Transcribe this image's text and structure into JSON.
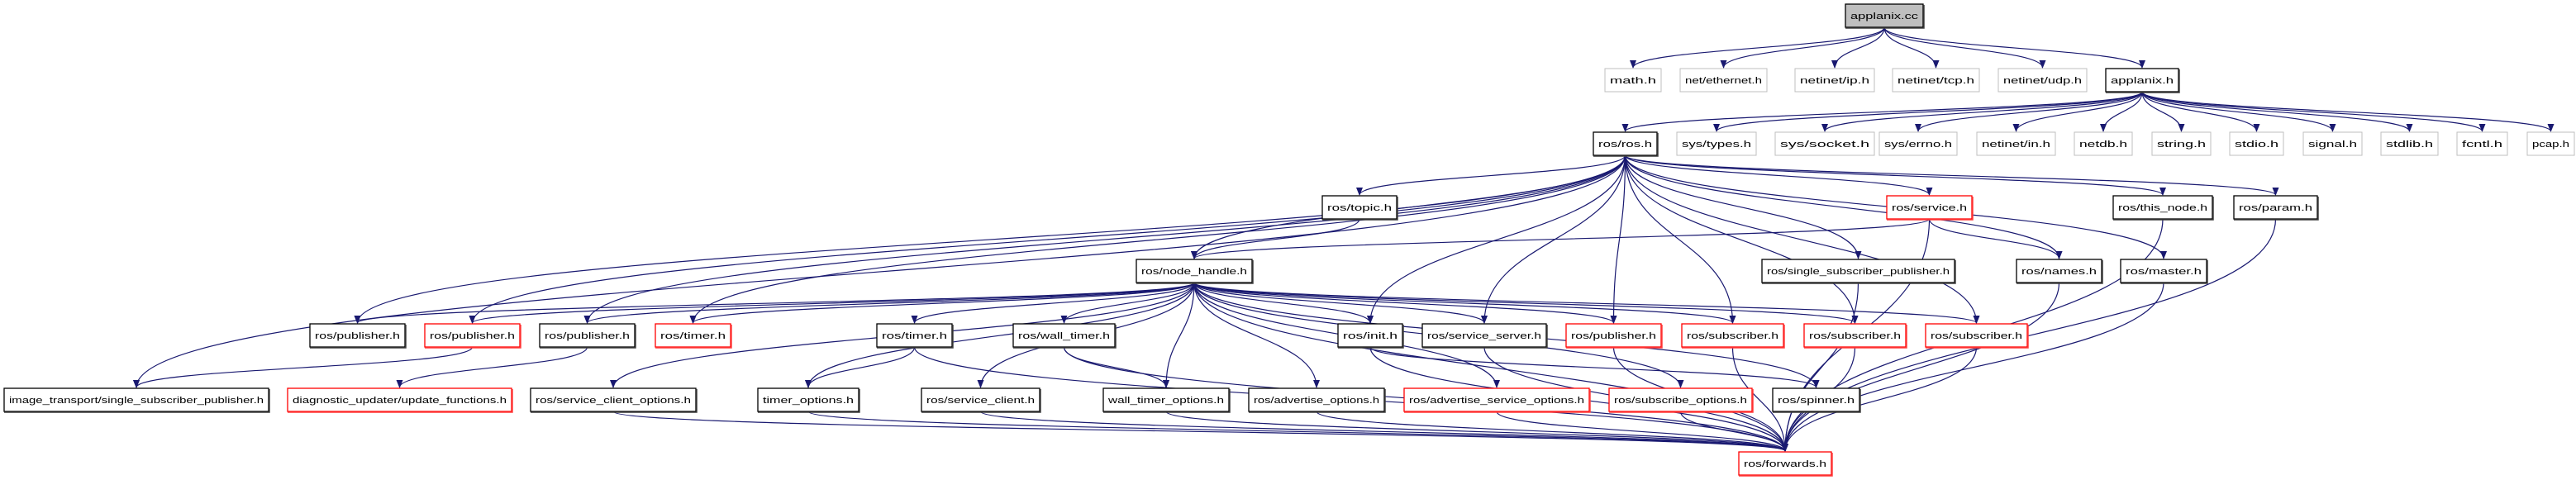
{
  "colors": {
    "edge": "#191970",
    "root_fill": "#bfbfbf",
    "documented_border": "#000000",
    "undocumented_border": "#ff0000",
    "external_border": "#bfbfbf"
  },
  "nodes": [
    {
      "label": "applanix.cc",
      "kind": "root"
    },
    {
      "label": "math.h",
      "kind": "external"
    },
    {
      "label": "net/ethernet.h",
      "kind": "external"
    },
    {
      "label": "netinet/ip.h",
      "kind": "external"
    },
    {
      "label": "netinet/tcp.h",
      "kind": "external"
    },
    {
      "label": "netinet/udp.h",
      "kind": "external"
    },
    {
      "label": "applanix.h",
      "kind": "documented"
    },
    {
      "label": "ros/ros.h",
      "kind": "documented"
    },
    {
      "label": "sys/types.h",
      "kind": "external"
    },
    {
      "label": "sys/socket.h",
      "kind": "external"
    },
    {
      "label": "sys/errno.h",
      "kind": "external"
    },
    {
      "label": "netinet/in.h",
      "kind": "external"
    },
    {
      "label": "netdb.h",
      "kind": "external"
    },
    {
      "label": "string.h",
      "kind": "external"
    },
    {
      "label": "stdio.h",
      "kind": "external"
    },
    {
      "label": "signal.h",
      "kind": "external"
    },
    {
      "label": "stdlib.h",
      "kind": "external"
    },
    {
      "label": "fcntl.h",
      "kind": "external"
    },
    {
      "label": "pcap.h",
      "kind": "external"
    },
    {
      "label": "ros/topic.h",
      "kind": "documented"
    },
    {
      "label": "ros/service.h",
      "kind": "undocumented"
    },
    {
      "label": "ros/this_node.h",
      "kind": "documented"
    },
    {
      "label": "ros/param.h",
      "kind": "documented"
    },
    {
      "label": "ros/node_handle.h",
      "kind": "documented"
    },
    {
      "label": "ros/single_subscriber_publisher.h",
      "kind": "documented"
    },
    {
      "label": "ros/names.h",
      "kind": "documented"
    },
    {
      "label": "ros/master.h",
      "kind": "documented"
    },
    {
      "label": "ros/publisher.h",
      "kind": "documented"
    },
    {
      "label": "ros/publisher.h",
      "kind": "undocumented"
    },
    {
      "label": "ros/publisher.h",
      "kind": "documented"
    },
    {
      "label": "ros/timer.h",
      "kind": "undocumented"
    },
    {
      "label": "ros/timer.h",
      "kind": "documented"
    },
    {
      "label": "ros/wall_timer.h",
      "kind": "documented"
    },
    {
      "label": "ros/init.h",
      "kind": "documented"
    },
    {
      "label": "ros/service_server.h",
      "kind": "documented"
    },
    {
      "label": "ros/publisher.h",
      "kind": "undocumented"
    },
    {
      "label": "ros/subscriber.h",
      "kind": "undocumented"
    },
    {
      "label": "ros/subscriber.h",
      "kind": "undocumented"
    },
    {
      "label": "ros/subscriber.h",
      "kind": "undocumented"
    },
    {
      "label": "image_transport/single_subscriber_publisher.h",
      "kind": "documented"
    },
    {
      "label": "diagnostic_updater/update_functions.h",
      "kind": "undocumented"
    },
    {
      "label": "ros/service_client_options.h",
      "kind": "documented"
    },
    {
      "label": "timer_options.h",
      "kind": "documented"
    },
    {
      "label": "ros/service_client.h",
      "kind": "documented"
    },
    {
      "label": "wall_timer_options.h",
      "kind": "documented"
    },
    {
      "label": "ros/advertise_options.h",
      "kind": "documented"
    },
    {
      "label": "ros/advertise_service_options.h",
      "kind": "undocumented"
    },
    {
      "label": "ros/subscribe_options.h",
      "kind": "undocumented"
    },
    {
      "label": "ros/spinner.h",
      "kind": "documented"
    },
    {
      "label": "ros/forwards.h",
      "kind": "undocumented"
    }
  ],
  "edges": [
    [
      0,
      1
    ],
    [
      0,
      2
    ],
    [
      0,
      3
    ],
    [
      0,
      4
    ],
    [
      0,
      5
    ],
    [
      0,
      6
    ],
    [
      6,
      7
    ],
    [
      6,
      8
    ],
    [
      6,
      9
    ],
    [
      6,
      10
    ],
    [
      6,
      11
    ],
    [
      6,
      12
    ],
    [
      6,
      13
    ],
    [
      6,
      14
    ],
    [
      6,
      15
    ],
    [
      6,
      16
    ],
    [
      6,
      17
    ],
    [
      6,
      18
    ],
    [
      7,
      19
    ],
    [
      7,
      20
    ],
    [
      7,
      21
    ],
    [
      7,
      22
    ],
    [
      7,
      23
    ],
    [
      7,
      39
    ],
    [
      7,
      27
    ],
    [
      7,
      28
    ],
    [
      7,
      29
    ],
    [
      7,
      30
    ],
    [
      7,
      33
    ],
    [
      7,
      34
    ],
    [
      7,
      35
    ],
    [
      7,
      36
    ],
    [
      7,
      37
    ],
    [
      7,
      38
    ],
    [
      7,
      24
    ],
    [
      7,
      25
    ],
    [
      7,
      26
    ],
    [
      19,
      23
    ],
    [
      20,
      23
    ],
    [
      20,
      25
    ],
    [
      20,
      49
    ],
    [
      21,
      49
    ],
    [
      22,
      49
    ],
    [
      23,
      27
    ],
    [
      23,
      28
    ],
    [
      23,
      29
    ],
    [
      23,
      30
    ],
    [
      23,
      31
    ],
    [
      23,
      32
    ],
    [
      23,
      33
    ],
    [
      23,
      34
    ],
    [
      23,
      35
    ],
    [
      23,
      36
    ],
    [
      23,
      37
    ],
    [
      23,
      38
    ],
    [
      23,
      41
    ],
    [
      23,
      42
    ],
    [
      23,
      43
    ],
    [
      23,
      44
    ],
    [
      23,
      45
    ],
    [
      23,
      46
    ],
    [
      23,
      47
    ],
    [
      23,
      48
    ],
    [
      23,
      49
    ],
    [
      28,
      39
    ],
    [
      29,
      40
    ],
    [
      31,
      42
    ],
    [
      31,
      49
    ],
    [
      32,
      44
    ],
    [
      32,
      49
    ],
    [
      33,
      48
    ],
    [
      33,
      49
    ],
    [
      34,
      49
    ],
    [
      35,
      49
    ],
    [
      36,
      49
    ],
    [
      37,
      49
    ],
    [
      38,
      49
    ],
    [
      24,
      49
    ],
    [
      25,
      49
    ],
    [
      26,
      49
    ],
    [
      41,
      49
    ],
    [
      42,
      49
    ],
    [
      43,
      49
    ],
    [
      44,
      49
    ],
    [
      45,
      49
    ],
    [
      46,
      49
    ],
    [
      47,
      49
    ]
  ]
}
